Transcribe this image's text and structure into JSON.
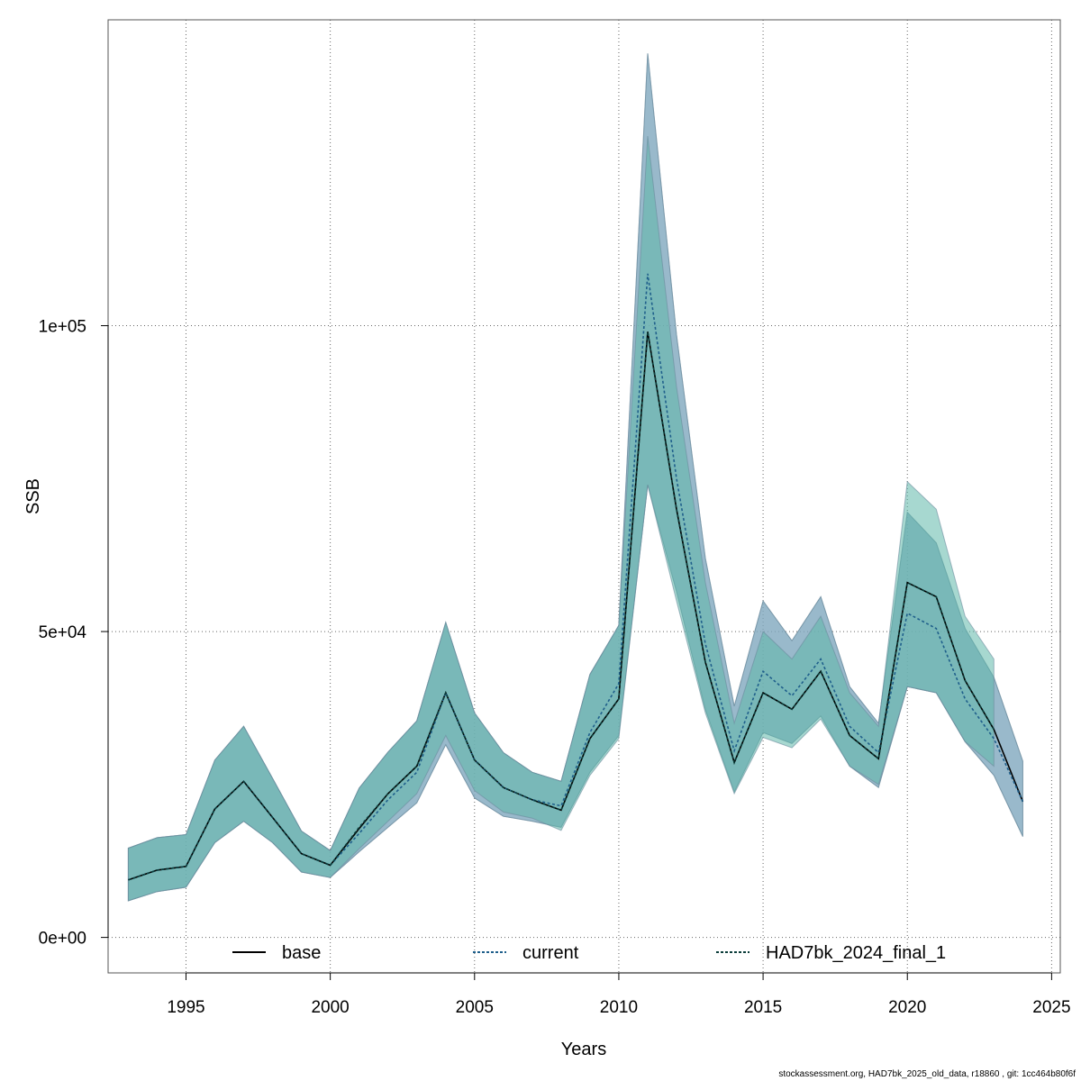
{
  "chart_data": {
    "type": "area",
    "xlabel": "Years",
    "ylabel": "SSB",
    "xlim": [
      1992.3,
      2025.3
    ],
    "ylim": [
      -5800,
      150000
    ],
    "x_ticks": [
      1995,
      2000,
      2005,
      2010,
      2015,
      2020,
      2025
    ],
    "y_ticks": [
      0,
      50000,
      100000
    ],
    "y_tick_labels": [
      "0e+00",
      "5e+04",
      "1e+05"
    ],
    "grid": true,
    "legend_position": "bottom",
    "series": [
      {
        "name": "base",
        "line_style": "solid",
        "line_color": "#000000",
        "band_color": "#7fa7bd",
        "x": [
          1993,
          1994,
          1995,
          1996,
          1997,
          1998,
          1999,
          2000,
          2001,
          2002,
          2003,
          2004,
          2005,
          2006,
          2007,
          2008,
          2009,
          2010,
          2011,
          2012,
          2013,
          2014,
          2015,
          2016,
          2017,
          2018,
          2019,
          2020,
          2021,
          2022,
          2023,
          2024
        ],
        "lower": [
          6000,
          7500,
          8200,
          15500,
          19000,
          15500,
          10700,
          9800,
          14000,
          18000,
          22000,
          31500,
          22800,
          19800,
          19000,
          18000,
          27000,
          33000,
          74000,
          56500,
          37300,
          23800,
          33500,
          31700,
          36200,
          28000,
          24500,
          41000,
          40000,
          32000,
          26500,
          16500
        ],
        "values": [
          9400,
          11000,
          11600,
          21000,
          25500,
          19600,
          13700,
          11800,
          17800,
          23500,
          28000,
          40000,
          29000,
          24500,
          22500,
          20800,
          32500,
          39000,
          99000,
          70000,
          45000,
          28600,
          40000,
          37300,
          43500,
          33000,
          29200,
          58000,
          55700,
          42000,
          34000,
          22200
        ],
        "upper": [
          14600,
          16300,
          16800,
          29000,
          34500,
          26000,
          17400,
          14200,
          24400,
          30300,
          35400,
          51500,
          36700,
          30200,
          27000,
          25500,
          43000,
          51000,
          144500,
          98500,
          62000,
          37800,
          55000,
          48500,
          55700,
          41000,
          35000,
          69500,
          64500,
          50500,
          42500,
          28800
        ]
      },
      {
        "name": "current",
        "line_style": "dotted",
        "line_color": "#1f5f8b",
        "band_color": "#7fa7bd",
        "x": [
          1993,
          1994,
          1995,
          1996,
          1997,
          1998,
          1999,
          2000,
          2001,
          2002,
          2003,
          2004,
          2005,
          2006,
          2007,
          2008,
          2009,
          2010,
          2011,
          2012,
          2013,
          2014,
          2015,
          2016,
          2017,
          2018,
          2019,
          2020,
          2021,
          2022,
          2023,
          2024
        ],
        "lower": [
          6000,
          7500,
          8200,
          15500,
          19000,
          15500,
          10700,
          9800,
          14000,
          18000,
          22000,
          31500,
          22800,
          19800,
          19000,
          18000,
          27000,
          33000,
          74000,
          56500,
          37300,
          23800,
          33500,
          31700,
          36200,
          28000,
          24500,
          41000,
          40000,
          32000,
          26500,
          16500
        ],
        "values": [
          9400,
          11000,
          11600,
          21000,
          25500,
          19600,
          13700,
          11800,
          17000,
          22500,
          27000,
          40000,
          29000,
          24500,
          22500,
          21500,
          33500,
          41500,
          108500,
          75000,
          48000,
          30500,
          43500,
          39500,
          45500,
          34500,
          30200,
          53000,
          50500,
          39000,
          32500,
          22200
        ],
        "upper": [
          14600,
          16300,
          16800,
          29000,
          34500,
          26000,
          17400,
          14200,
          24400,
          30300,
          35400,
          51500,
          36700,
          30200,
          27000,
          25500,
          43000,
          51000,
          144500,
          98500,
          62000,
          37800,
          55000,
          48500,
          55700,
          41000,
          35000,
          69500,
          64500,
          50500,
          42500,
          28800
        ]
      },
      {
        "name": "HAD7bk_2024_final_1",
        "line_style": "dotted",
        "line_color": "#0b3d3a",
        "band_color": "#5fb8aa",
        "x": [
          1993,
          1994,
          1995,
          1996,
          1997,
          1998,
          1999,
          2000,
          2001,
          2002,
          2003,
          2004,
          2005,
          2006,
          2007,
          2008,
          2009,
          2010,
          2011,
          2012,
          2013,
          2014,
          2015,
          2016,
          2017,
          2018,
          2019,
          2020,
          2021,
          2022,
          2023
        ],
        "lower": [
          6000,
          7500,
          8200,
          15500,
          19000,
          15500,
          10700,
          9800,
          14500,
          19000,
          23500,
          33000,
          24000,
          20500,
          19500,
          17500,
          26500,
          32500,
          74000,
          55000,
          36700,
          23500,
          32700,
          31000,
          35700,
          28000,
          25000,
          41000,
          40000,
          32000,
          28000
        ],
        "values": [
          9400,
          11000,
          11600,
          21000,
          25500,
          19600,
          13700,
          11800,
          18000,
          23500,
          28000,
          40000,
          29000,
          24500,
          22500,
          20800,
          32500,
          39000,
          99000,
          70000,
          45000,
          28600,
          40000,
          37300,
          43500,
          33000,
          29200,
          58000,
          55700,
          42000,
          34000
        ],
        "upper": [
          14600,
          16300,
          16800,
          29000,
          34500,
          26000,
          17400,
          14200,
          24400,
          30300,
          35400,
          51500,
          36700,
          30200,
          27000,
          25500,
          43000,
          51000,
          131000,
          90000,
          58000,
          35000,
          50000,
          45500,
          52500,
          40000,
          34500,
          74500,
          70000,
          52500,
          45500
        ]
      }
    ]
  },
  "footer": {
    "note": "stockassessment.org, HAD7bk_2025_old_data, r18860 , git: 1cc464b80f6f"
  }
}
